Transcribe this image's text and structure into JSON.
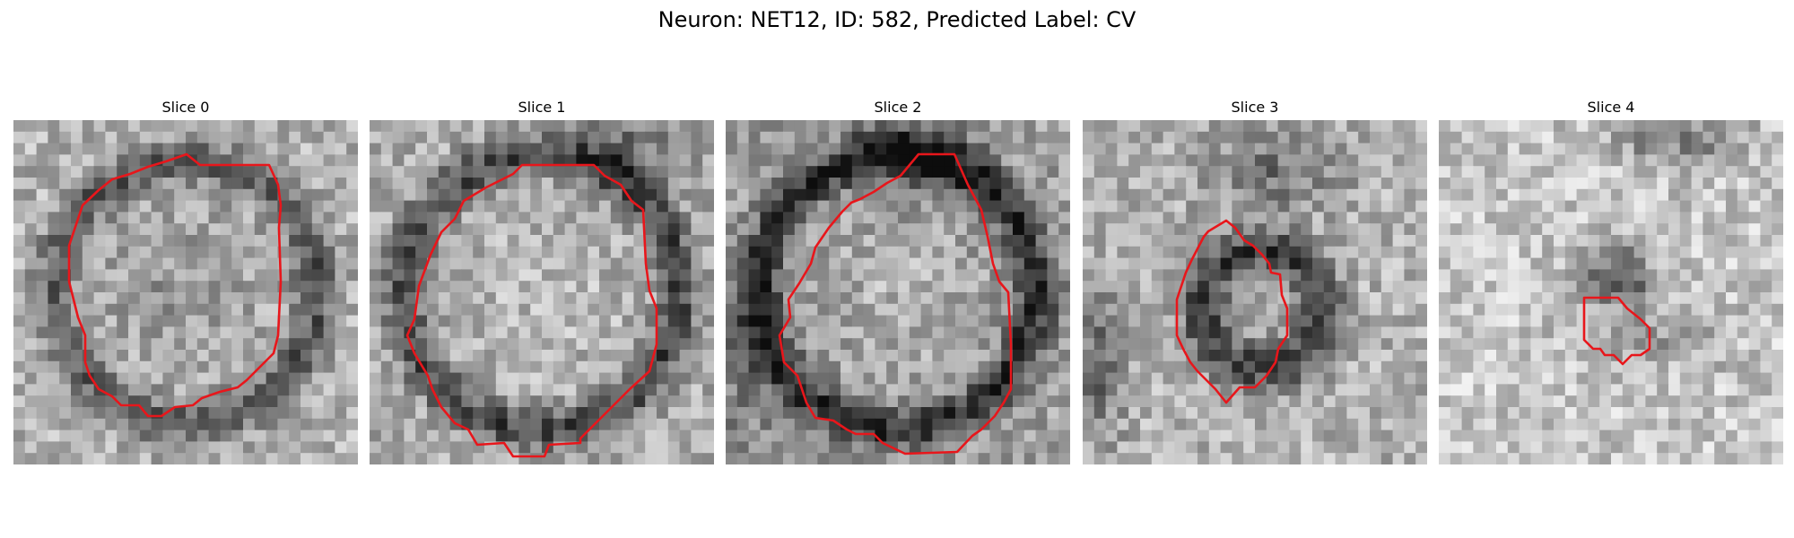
{
  "figure": {
    "title": "Neuron: NET12, ID: 582, Predicted Label: CV"
  },
  "panels": [
    {
      "label": "Slice 0"
    },
    {
      "label": "Slice 1"
    },
    {
      "label": "Slice 2"
    },
    {
      "label": "Slice 3"
    },
    {
      "label": "Slice 4"
    }
  ],
  "colors": {
    "contour": "#e8161b",
    "background": "#ffffff",
    "text": "#000000"
  },
  "image": {
    "colormap": "grayscale"
  }
}
